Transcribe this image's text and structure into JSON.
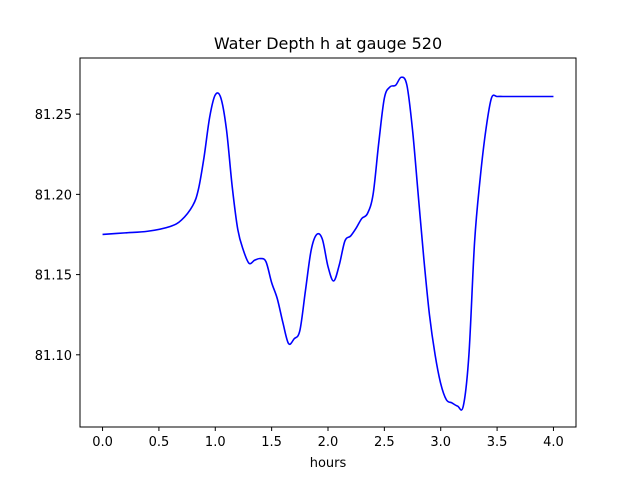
{
  "chart_data": {
    "type": "line",
    "title": "Water Depth h at gauge 520",
    "xlabel": "hours",
    "ylabel": "",
    "xlim": [
      -0.2,
      4.2
    ],
    "ylim": [
      81.055,
      81.285
    ],
    "xticks": [
      0.0,
      0.5,
      1.0,
      1.5,
      2.0,
      2.5,
      3.0,
      3.5,
      4.0
    ],
    "xtick_labels": [
      "0.0",
      "0.5",
      "1.0",
      "1.5",
      "2.0",
      "2.5",
      "3.0",
      "3.5",
      "4.0"
    ],
    "yticks": [
      81.1,
      81.15,
      81.2,
      81.25
    ],
    "ytick_labels": [
      "81.10",
      "81.15",
      "81.20",
      "81.25"
    ],
    "grid": false,
    "series": [
      {
        "color": "#0000ff",
        "x": [
          0.0,
          0.2,
          0.4,
          0.6,
          0.7,
          0.8,
          0.85,
          0.9,
          0.95,
          1.0,
          1.05,
          1.1,
          1.15,
          1.2,
          1.25,
          1.3,
          1.35,
          1.4,
          1.45,
          1.5,
          1.55,
          1.6,
          1.65,
          1.7,
          1.75,
          1.8,
          1.85,
          1.9,
          1.95,
          2.0,
          2.05,
          2.1,
          2.15,
          2.2,
          2.25,
          2.3,
          2.35,
          2.4,
          2.45,
          2.5,
          2.55,
          2.6,
          2.65,
          2.7,
          2.75,
          2.8,
          2.85,
          2.9,
          2.95,
          3.0,
          3.05,
          3.1,
          3.15,
          3.2,
          3.25,
          3.3,
          3.35,
          3.4,
          3.45,
          3.5,
          3.55,
          3.6,
          3.65,
          3.7,
          3.75,
          3.8,
          3.85,
          3.9,
          3.95,
          4.0
        ],
        "y": [
          81.175,
          81.176,
          81.177,
          81.18,
          81.184,
          81.193,
          81.203,
          81.223,
          81.248,
          81.262,
          81.26,
          81.24,
          81.205,
          81.178,
          81.165,
          81.157,
          81.159,
          81.16,
          81.158,
          81.145,
          81.135,
          81.12,
          81.107,
          81.11,
          81.115,
          81.14,
          81.165,
          81.175,
          81.172,
          81.155,
          81.146,
          81.156,
          81.171,
          81.174,
          81.179,
          81.185,
          81.188,
          81.2,
          81.232,
          81.26,
          81.267,
          81.268,
          81.273,
          81.268,
          81.24,
          81.2,
          81.16,
          81.125,
          81.1,
          81.082,
          81.072,
          81.07,
          81.068,
          81.068,
          81.1,
          81.17,
          81.21,
          81.24,
          81.26,
          81.261,
          81.261,
          81.261,
          81.261,
          81.261,
          81.261,
          81.261,
          81.261,
          81.261,
          81.261,
          81.261
        ]
      }
    ]
  }
}
